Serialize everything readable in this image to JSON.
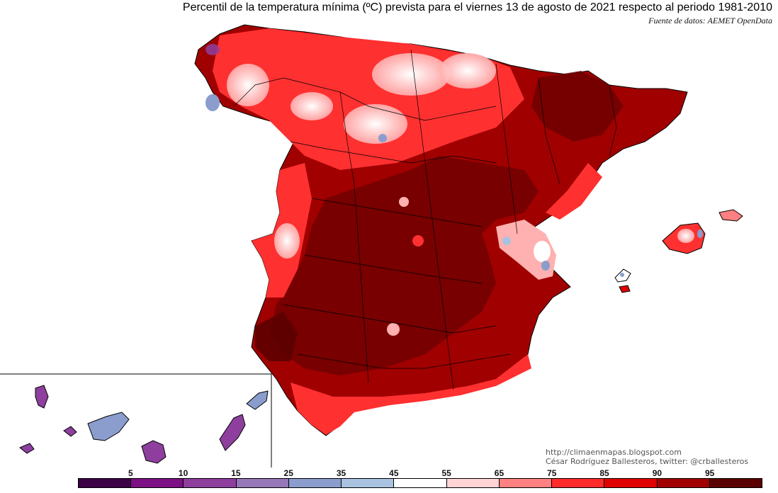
{
  "title": "Percentil de la temperatura mínima (ºC) prevista para el viernes 13 de agosto de 2021 respecto al periodo 1981-2010",
  "source": "Fuente de datos: AEMET OpenData",
  "credits": {
    "blog": "http://climaenmapas.blogspot.com",
    "author": "César Rodríguez Ballesteros, twitter: @crballesteros"
  },
  "legend": {
    "labels": [
      "5",
      "10",
      "15",
      "25",
      "35",
      "45",
      "55",
      "65",
      "75",
      "85",
      "90",
      "95"
    ],
    "colors": [
      "#3d0047",
      "#7c0f83",
      "#8e3f9e",
      "#9677b8",
      "#8a9dcd",
      "#a9c2e0",
      "#ffffff",
      "#ffd4d4",
      "#ff8080",
      "#ff2a2a",
      "#e00000",
      "#a00000",
      "#5a0000"
    ]
  },
  "map_colors": {
    "very_high": "#6b0000",
    "high": "#a00000",
    "elevated": "#e00000",
    "warm": "#ff3030",
    "mild": "#ffb0b0",
    "neutral": "#ffffff",
    "cool": "#8a9dcd",
    "cold": "#8e3f9e"
  }
}
